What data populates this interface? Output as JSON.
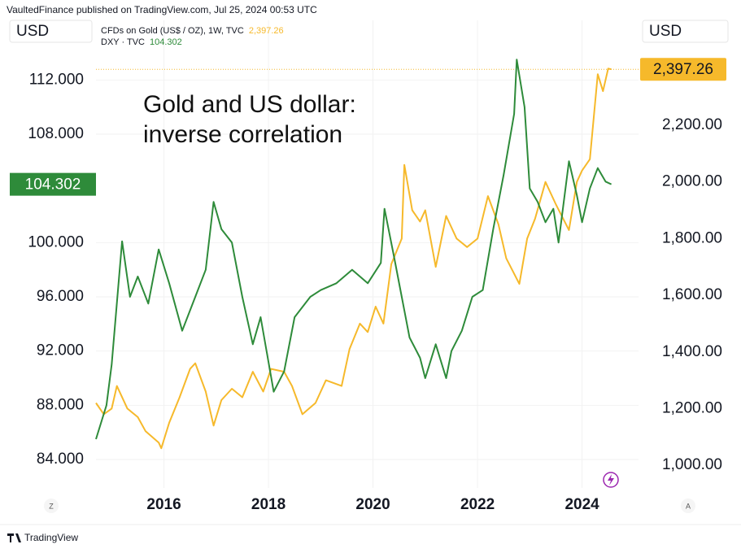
{
  "header": "VaultedFinance published on TradingView.com, Jul 25, 2024 00:53 UTC",
  "footer": "TradingView",
  "buttons": [
    "Z",
    "A"
  ],
  "chart_data": {
    "type": "line",
    "annotation": [
      "Gold and US dollar:",
      "inverse correlation"
    ],
    "y_unit": "USD",
    "y2_unit": "USD",
    "xlim": [
      2014.7,
      2025.08
    ],
    "xticks": [
      2016,
      2018,
      2020,
      2022,
      2024
    ],
    "ylim": [
      81.9,
      114.6
    ],
    "yticks": [
      {
        "value": 84,
        "label": "84.000"
      },
      {
        "value": 88,
        "label": "88.000"
      },
      {
        "value": 92,
        "label": "92.000"
      },
      {
        "value": 96,
        "label": "96.000"
      },
      {
        "value": 100,
        "label": "100.000"
      },
      {
        "value": 108,
        "label": "108.000"
      },
      {
        "value": 112,
        "label": "112.000"
      }
    ],
    "y2lim": [
      920,
      2484
    ],
    "y2ticks": [
      {
        "value": 1000,
        "label": "1,000.00"
      },
      {
        "value": 1200,
        "label": "1,200.00"
      },
      {
        "value": 1400,
        "label": "1,400.00"
      },
      {
        "value": 1600,
        "label": "1,600.00"
      },
      {
        "value": 1800,
        "label": "1,800.00"
      },
      {
        "value": 2000,
        "label": "2,000.00"
      },
      {
        "value": 2200,
        "label": "2,200.00"
      }
    ],
    "grid": true,
    "series": [
      {
        "name": "CFDs on Gold (US$ / OZ), 1W, TVC",
        "color": "#f6b92b",
        "axis": "y2",
        "last_value_label": "2,397.26",
        "x": [
          2014.7,
          2014.85,
          2015.0,
          2015.1,
          2015.3,
          2015.5,
          2015.65,
          2015.9,
          2015.95,
          2016.1,
          2016.3,
          2016.5,
          2016.6,
          2016.8,
          2016.95,
          2017.1,
          2017.3,
          2017.5,
          2017.7,
          2017.9,
          2018.05,
          2018.3,
          2018.45,
          2018.65,
          2018.9,
          2019.1,
          2019.4,
          2019.55,
          2019.75,
          2019.9,
          2020.05,
          2020.2,
          2020.35,
          2020.55,
          2020.6,
          2020.75,
          2020.9,
          2021.0,
          2021.2,
          2021.4,
          2021.6,
          2021.8,
          2022.0,
          2022.2,
          2022.4,
          2022.55,
          2022.8,
          2022.95,
          2023.1,
          2023.3,
          2023.5,
          2023.75,
          2023.9,
          2024.0,
          2024.15,
          2024.3,
          2024.4,
          2024.5,
          2024.56
        ],
        "values": [
          1220,
          1180,
          1200,
          1280,
          1200,
          1170,
          1120,
          1080,
          1060,
          1150,
          1240,
          1340,
          1360,
          1260,
          1140,
          1230,
          1270,
          1240,
          1330,
          1260,
          1340,
          1330,
          1280,
          1180,
          1220,
          1300,
          1280,
          1410,
          1500,
          1470,
          1560,
          1500,
          1710,
          1800,
          2060,
          1900,
          1860,
          1900,
          1700,
          1880,
          1800,
          1770,
          1800,
          1950,
          1850,
          1730,
          1640,
          1800,
          1870,
          2000,
          1920,
          1830,
          2000,
          2040,
          2080,
          2380,
          2320,
          2400,
          2397.26
        ]
      },
      {
        "name": "DXY · TVC",
        "color": "#2e8b3a",
        "last_value_label": "104.302",
        "x": [
          2014.7,
          2014.9,
          2015.0,
          2015.2,
          2015.35,
          2015.5,
          2015.7,
          2015.9,
          2016.1,
          2016.35,
          2016.6,
          2016.8,
          2016.95,
          2017.1,
          2017.3,
          2017.5,
          2017.7,
          2017.85,
          2018.1,
          2018.3,
          2018.5,
          2018.8,
          2019.0,
          2019.3,
          2019.6,
          2019.9,
          2020.15,
          2020.22,
          2020.4,
          2020.55,
          2020.7,
          2020.9,
          2021.0,
          2021.2,
          2021.4,
          2021.5,
          2021.7,
          2021.9,
          2022.1,
          2022.3,
          2022.5,
          2022.7,
          2022.75,
          2022.9,
          2023.0,
          2023.15,
          2023.3,
          2023.45,
          2023.55,
          2023.75,
          2023.9,
          2024.0,
          2024.15,
          2024.3,
          2024.45,
          2024.56
        ],
        "values": [
          85.5,
          88,
          91,
          100.1,
          96,
          97.5,
          95.5,
          99.5,
          97,
          93.5,
          96,
          98,
          103,
          101,
          100,
          96,
          92.5,
          94.5,
          89,
          90.5,
          94.5,
          96,
          96.5,
          97,
          98,
          97,
          98.5,
          102.5,
          99,
          96,
          93,
          91.5,
          90,
          92.5,
          90,
          92,
          93.5,
          96,
          96.5,
          101,
          105,
          109.5,
          113.5,
          110,
          104,
          103,
          101.5,
          102.5,
          100,
          106,
          103.5,
          101.5,
          104,
          105.5,
          104.5,
          104.302
        ]
      }
    ]
  }
}
